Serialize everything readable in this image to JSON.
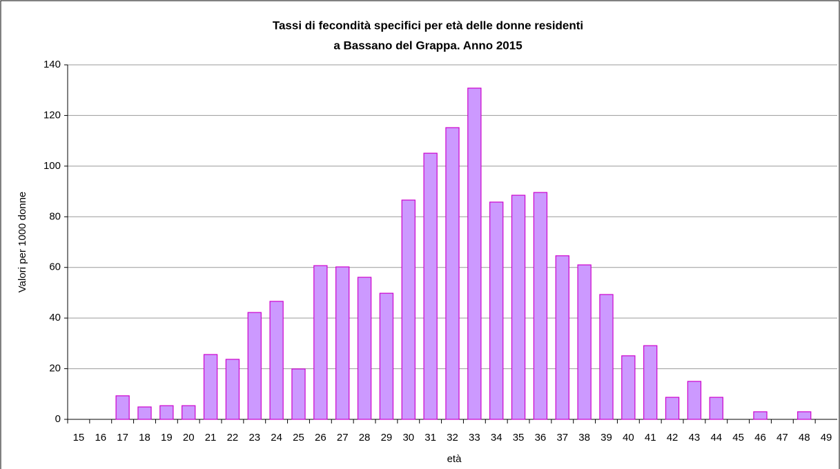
{
  "chart_data": {
    "type": "bar",
    "title": [
      "Tassi di fecondità specifici per età delle donne residenti",
      "a Bassano del Grappa. Anno 2015"
    ],
    "x_label": "età",
    "y_label": "Valori per 1000 donne",
    "categories": [
      "15",
      "16",
      "17",
      "18",
      "19",
      "20",
      "21",
      "22",
      "23",
      "24",
      "25",
      "26",
      "27",
      "28",
      "29",
      "30",
      "31",
      "32",
      "33",
      "34",
      "35",
      "36",
      "37",
      "38",
      "39",
      "40",
      "41",
      "42",
      "43",
      "44",
      "45",
      "46",
      "47",
      "48",
      "49"
    ],
    "values": [
      0,
      0,
      9.3,
      4.9,
      5.4,
      5.4,
      25.6,
      23.7,
      42.2,
      46.6,
      19.9,
      60.7,
      60.2,
      56.1,
      49.8,
      86.6,
      105.1,
      115.2,
      130.8,
      85.8,
      88.5,
      89.6,
      64.6,
      61.0,
      49.3,
      25.1,
      29.1,
      8.7,
      15.0,
      8.7,
      0,
      3.0,
      0,
      3.0,
      0
    ],
    "color": "#cc99ff",
    "edge_color": "#cc00cc",
    "ylim": [
      0,
      140
    ],
    "yticks": [
      0,
      20,
      40,
      60,
      80,
      100,
      120,
      140
    ],
    "grid": true
  }
}
